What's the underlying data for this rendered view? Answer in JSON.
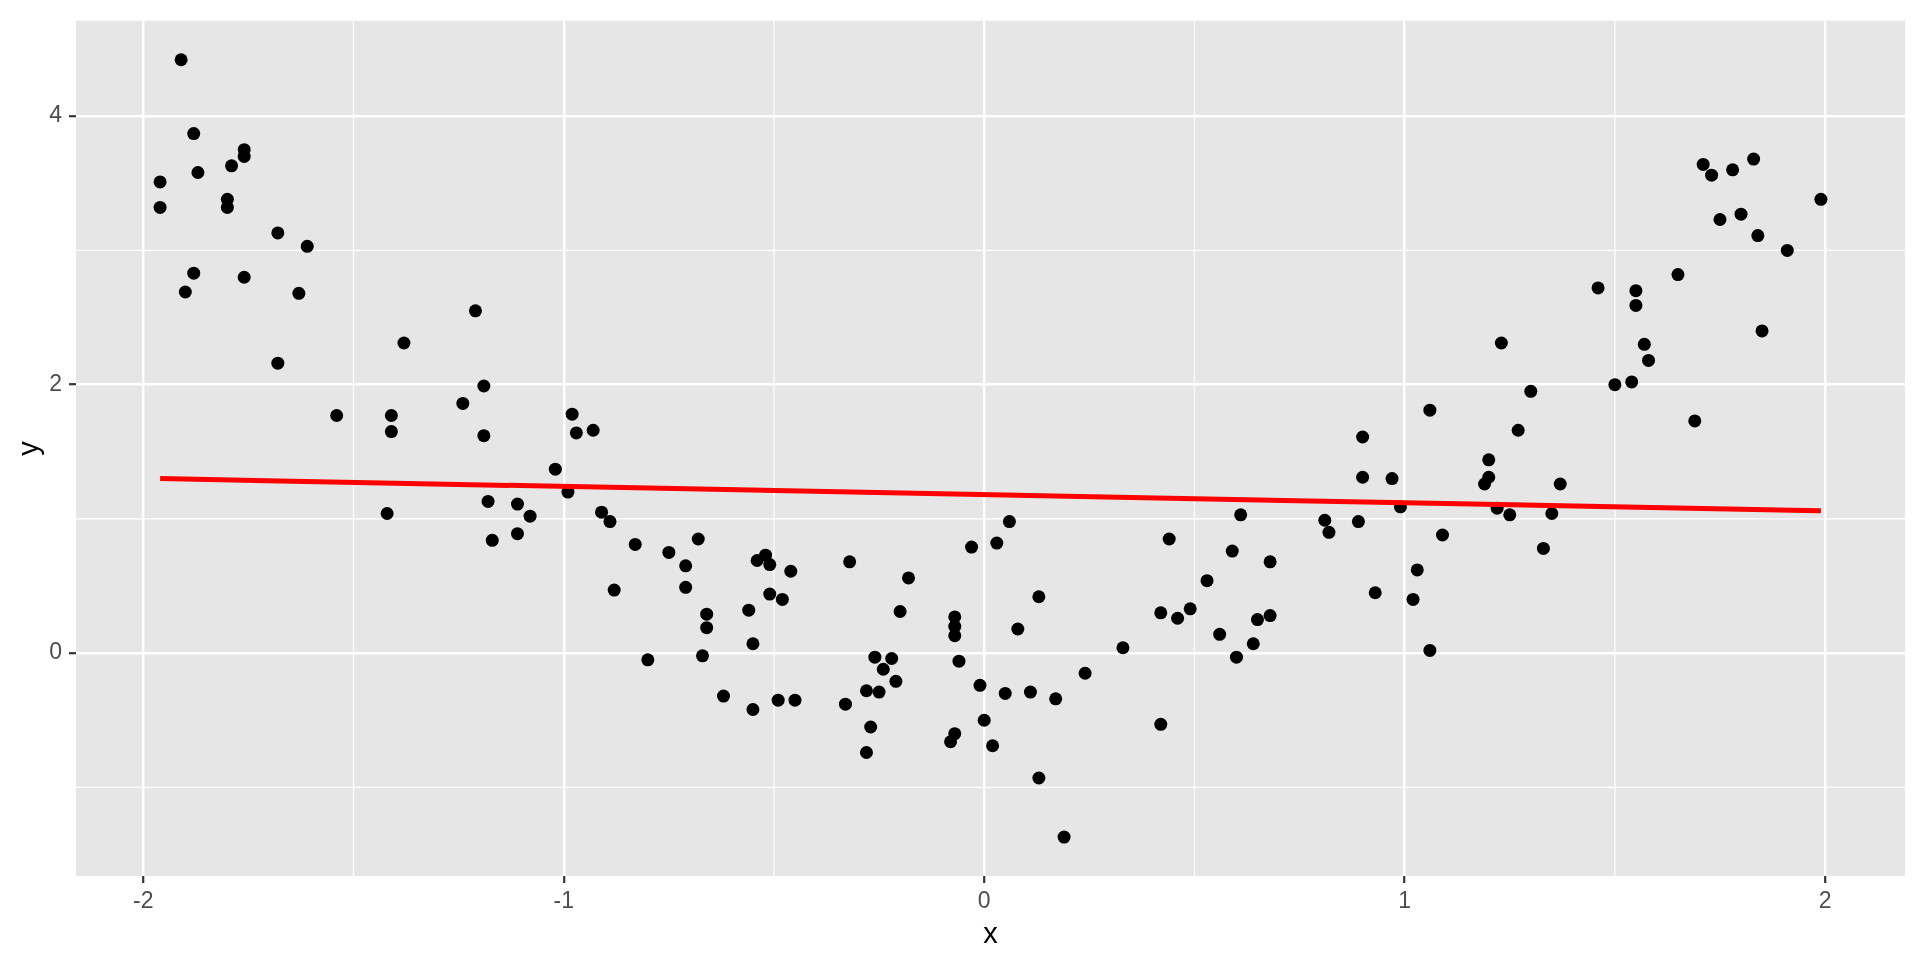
{
  "chart_data": {
    "type": "scatter",
    "xlabel": "x",
    "ylabel": "y",
    "xlim": [
      -2.16,
      2.19
    ],
    "ylim": [
      -1.66,
      4.71
    ],
    "xticks": [
      -2,
      -1,
      0,
      1,
      2
    ],
    "yticks": [
      0,
      2,
      4
    ],
    "grid": true,
    "marker": "circle",
    "series": [
      {
        "type": "scatter",
        "color": "#000000",
        "x": [
          -1.91,
          -1.88,
          -1.76,
          -1.76,
          -1.79,
          -1.87,
          -1.96,
          -1.96,
          -1.8,
          -1.8,
          -1.68,
          -1.61,
          -1.88,
          -1.76,
          -1.9,
          -1.63,
          -1.21,
          -1.38,
          -1.68,
          -1.19,
          -1.24,
          -1.54,
          -1.41,
          -1.41,
          -1.19,
          -0.98,
          -0.97,
          -0.93,
          -1.02,
          -1.42,
          -1.18,
          -1.11,
          -1.08,
          -1.17,
          -1.11,
          -0.99,
          -0.91,
          -0.89,
          -0.83,
          -0.75,
          -0.71,
          -0.71,
          -0.88,
          -0.8,
          -0.68,
          -0.66,
          -0.66,
          -0.67,
          -0.62,
          -0.55,
          -0.56,
          -0.55,
          -0.54,
          -0.52,
          -0.51,
          -0.51,
          -0.48,
          -0.46,
          -0.49,
          -0.45,
          -0.32,
          -0.33,
          -0.26,
          -0.22,
          -0.24,
          -0.21,
          -0.28,
          -0.25,
          -0.27,
          -0.28,
          -0.18,
          -0.2,
          -0.07,
          -0.07,
          -0.07,
          -0.06,
          -0.03,
          0.03,
          0.06,
          -0.01,
          0.0,
          -0.07,
          -0.08,
          0.02,
          0.05,
          0.08,
          0.11,
          0.13,
          0.13,
          0.17,
          0.19,
          0.24,
          0.33,
          0.44,
          0.42,
          0.46,
          0.49,
          0.42,
          0.53,
          0.56,
          0.59,
          0.61,
          0.6,
          0.64,
          0.65,
          0.68,
          0.68,
          0.81,
          0.82,
          0.9,
          0.89,
          0.97,
          0.99,
          0.93,
          1.03,
          1.02,
          1.09,
          1.06,
          1.2,
          1.2,
          1.19,
          1.22,
          1.25,
          1.37,
          1.35,
          1.33,
          1.71,
          1.73,
          1.78,
          1.83,
          1.99,
          1.75,
          1.8,
          1.84,
          1.91,
          1.65,
          1.46,
          1.55,
          1.55,
          1.85,
          1.23,
          1.57,
          1.58,
          1.5,
          1.54,
          1.3,
          1.06,
          1.69,
          1.27,
          0.9
        ],
        "values": [
          4.42,
          3.87,
          3.75,
          3.7,
          3.63,
          3.58,
          3.51,
          3.32,
          3.38,
          3.32,
          3.13,
          3.03,
          2.83,
          2.8,
          2.69,
          2.68,
          2.55,
          2.31,
          2.16,
          1.99,
          1.86,
          1.77,
          1.77,
          1.65,
          1.62,
          1.78,
          1.64,
          1.66,
          1.37,
          1.04,
          1.13,
          1.11,
          1.02,
          0.84,
          0.89,
          1.2,
          1.05,
          0.98,
          0.81,
          0.75,
          0.65,
          0.49,
          0.47,
          -0.05,
          0.85,
          0.29,
          0.19,
          -0.02,
          -0.32,
          -0.42,
          0.32,
          0.07,
          0.69,
          0.73,
          0.66,
          0.44,
          0.4,
          0.61,
          -0.35,
          -0.35,
          0.68,
          -0.38,
          -0.03,
          -0.04,
          -0.12,
          -0.21,
          -0.28,
          -0.29,
          -0.55,
          -0.74,
          0.56,
          0.31,
          0.27,
          0.2,
          0.13,
          -0.06,
          0.79,
          0.82,
          0.98,
          -0.24,
          -0.5,
          -0.6,
          -0.66,
          -0.69,
          -0.3,
          0.18,
          -0.29,
          0.42,
          -0.93,
          -0.34,
          -1.37,
          -0.15,
          0.04,
          0.85,
          0.3,
          0.26,
          0.33,
          -0.53,
          0.54,
          0.14,
          0.76,
          1.03,
          -0.03,
          0.07,
          0.25,
          0.68,
          0.28,
          0.99,
          0.9,
          1.31,
          0.98,
          1.3,
          1.09,
          0.45,
          0.62,
          0.4,
          0.88,
          0.02,
          1.44,
          1.31,
          1.26,
          1.08,
          1.03,
          1.26,
          1.04,
          0.78,
          3.64,
          3.56,
          3.6,
          3.68,
          3.38,
          3.23,
          3.27,
          3.11,
          3.0,
          2.82,
          2.72,
          2.7,
          2.59,
          2.4,
          2.31,
          2.3,
          2.18,
          2.0,
          2.02,
          1.95,
          1.81,
          1.73,
          1.66,
          1.61
        ]
      },
      {
        "type": "line",
        "color": "#ff0000",
        "marker": "none",
        "x": [
          -1.96,
          1.99
        ],
        "values": [
          1.3,
          1.06
        ]
      }
    ]
  }
}
